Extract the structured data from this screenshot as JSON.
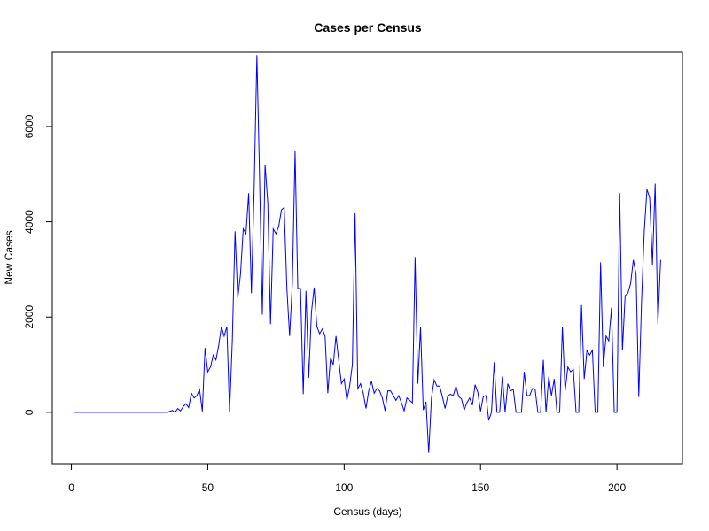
{
  "chart_data": {
    "type": "line",
    "title": "Cases per Census",
    "xlabel": "Census (days)",
    "ylabel": "New Cases",
    "xlim": [
      -7,
      224
    ],
    "ylim": [
      -1080,
      7560
    ],
    "xticks": [
      0,
      50,
      100,
      150,
      200
    ],
    "yticks": [
      0,
      2000,
      4000,
      6000
    ],
    "grid": false,
    "series": [
      {
        "name": "",
        "color": "#0000ff",
        "x": [
          1,
          2,
          3,
          4,
          5,
          6,
          7,
          8,
          9,
          10,
          11,
          12,
          13,
          14,
          15,
          16,
          17,
          18,
          19,
          20,
          21,
          22,
          23,
          24,
          25,
          26,
          27,
          28,
          29,
          30,
          31,
          32,
          33,
          34,
          35,
          36,
          37,
          38,
          39,
          40,
          41,
          42,
          43,
          44,
          45,
          46,
          47,
          48,
          49,
          50,
          51,
          52,
          53,
          54,
          55,
          56,
          57,
          58,
          59,
          60,
          61,
          62,
          63,
          64,
          65,
          66,
          67,
          68,
          69,
          70,
          71,
          72,
          73,
          74,
          75,
          76,
          77,
          78,
          79,
          80,
          81,
          82,
          83,
          84,
          85,
          86,
          87,
          88,
          89,
          90,
          91,
          92,
          93,
          94,
          95,
          96,
          97,
          98,
          99,
          100,
          101,
          102,
          103,
          104,
          105,
          106,
          107,
          108,
          109,
          110,
          111,
          112,
          113,
          114,
          115,
          116,
          117,
          118,
          119,
          120,
          121,
          122,
          123,
          124,
          125,
          126,
          127,
          128,
          129,
          130,
          131,
          132,
          133,
          134,
          135,
          136,
          137,
          138,
          139,
          140,
          141,
          142,
          143,
          144,
          145,
          146,
          147,
          148,
          149,
          150,
          151,
          152,
          153,
          154,
          155,
          156,
          157,
          158,
          159,
          160,
          161,
          162,
          163,
          164,
          165,
          166,
          167,
          168,
          169,
          170,
          171,
          172,
          173,
          174,
          175,
          176,
          177,
          178,
          179,
          180,
          181,
          182,
          183,
          184,
          185,
          186,
          187,
          188,
          189,
          190,
          191,
          192,
          193,
          194,
          195,
          196,
          197,
          198,
          199,
          200,
          201,
          202,
          203,
          204,
          205,
          206,
          207,
          208,
          209,
          210,
          211,
          212,
          213,
          214,
          215,
          216
        ],
        "y": [
          0,
          0,
          0,
          0,
          0,
          0,
          0,
          0,
          0,
          0,
          0,
          0,
          0,
          0,
          0,
          0,
          0,
          0,
          0,
          0,
          0,
          0,
          0,
          0,
          0,
          0,
          0,
          0,
          0,
          0,
          0,
          0,
          0,
          0,
          0,
          20,
          40,
          0,
          80,
          30,
          120,
          180,
          100,
          400,
          300,
          350,
          480,
          20,
          1350,
          850,
          950,
          1200,
          1100,
          1400,
          1800,
          1600,
          1800,
          0,
          1500,
          3800,
          2400,
          2900,
          3850,
          3750,
          4600,
          2500,
          4700,
          7500,
          4900,
          2050,
          5200,
          4400,
          1850,
          3850,
          3750,
          3900,
          4250,
          4300,
          2600,
          1600,
          2700,
          5480,
          2600,
          2600,
          380,
          2550,
          720,
          2100,
          2620,
          1800,
          1650,
          1750,
          1600,
          400,
          1150,
          1000,
          1600,
          1100,
          600,
          700,
          250,
          550,
          1000,
          4180,
          500,
          600,
          400,
          80,
          450,
          650,
          400,
          500,
          450,
          300,
          30,
          450,
          450,
          350,
          250,
          350,
          200,
          30,
          300,
          250,
          200,
          3260,
          600,
          1780,
          50,
          220,
          -850,
          300,
          680,
          550,
          550,
          330,
          80,
          350,
          380,
          350,
          550,
          330,
          280,
          50,
          200,
          300,
          150,
          580,
          420,
          20,
          330,
          350,
          -170,
          0,
          1050,
          0,
          0,
          750,
          0,
          600,
          450,
          480,
          0,
          0,
          0,
          850,
          350,
          350,
          500,
          480,
          0,
          0,
          1100,
          0,
          750,
          350,
          700,
          0,
          0,
          1800,
          450,
          950,
          850,
          900,
          0,
          0,
          2250,
          700,
          1300,
          1200,
          1300,
          0,
          0,
          3150,
          950,
          1600,
          1500,
          2200,
          0,
          0,
          4600,
          1300,
          2450,
          2500,
          2700,
          3200,
          2900,
          320,
          2300,
          3800,
          4680,
          4500,
          3100,
          4800,
          1850,
          3200
        ]
      }
    ]
  }
}
